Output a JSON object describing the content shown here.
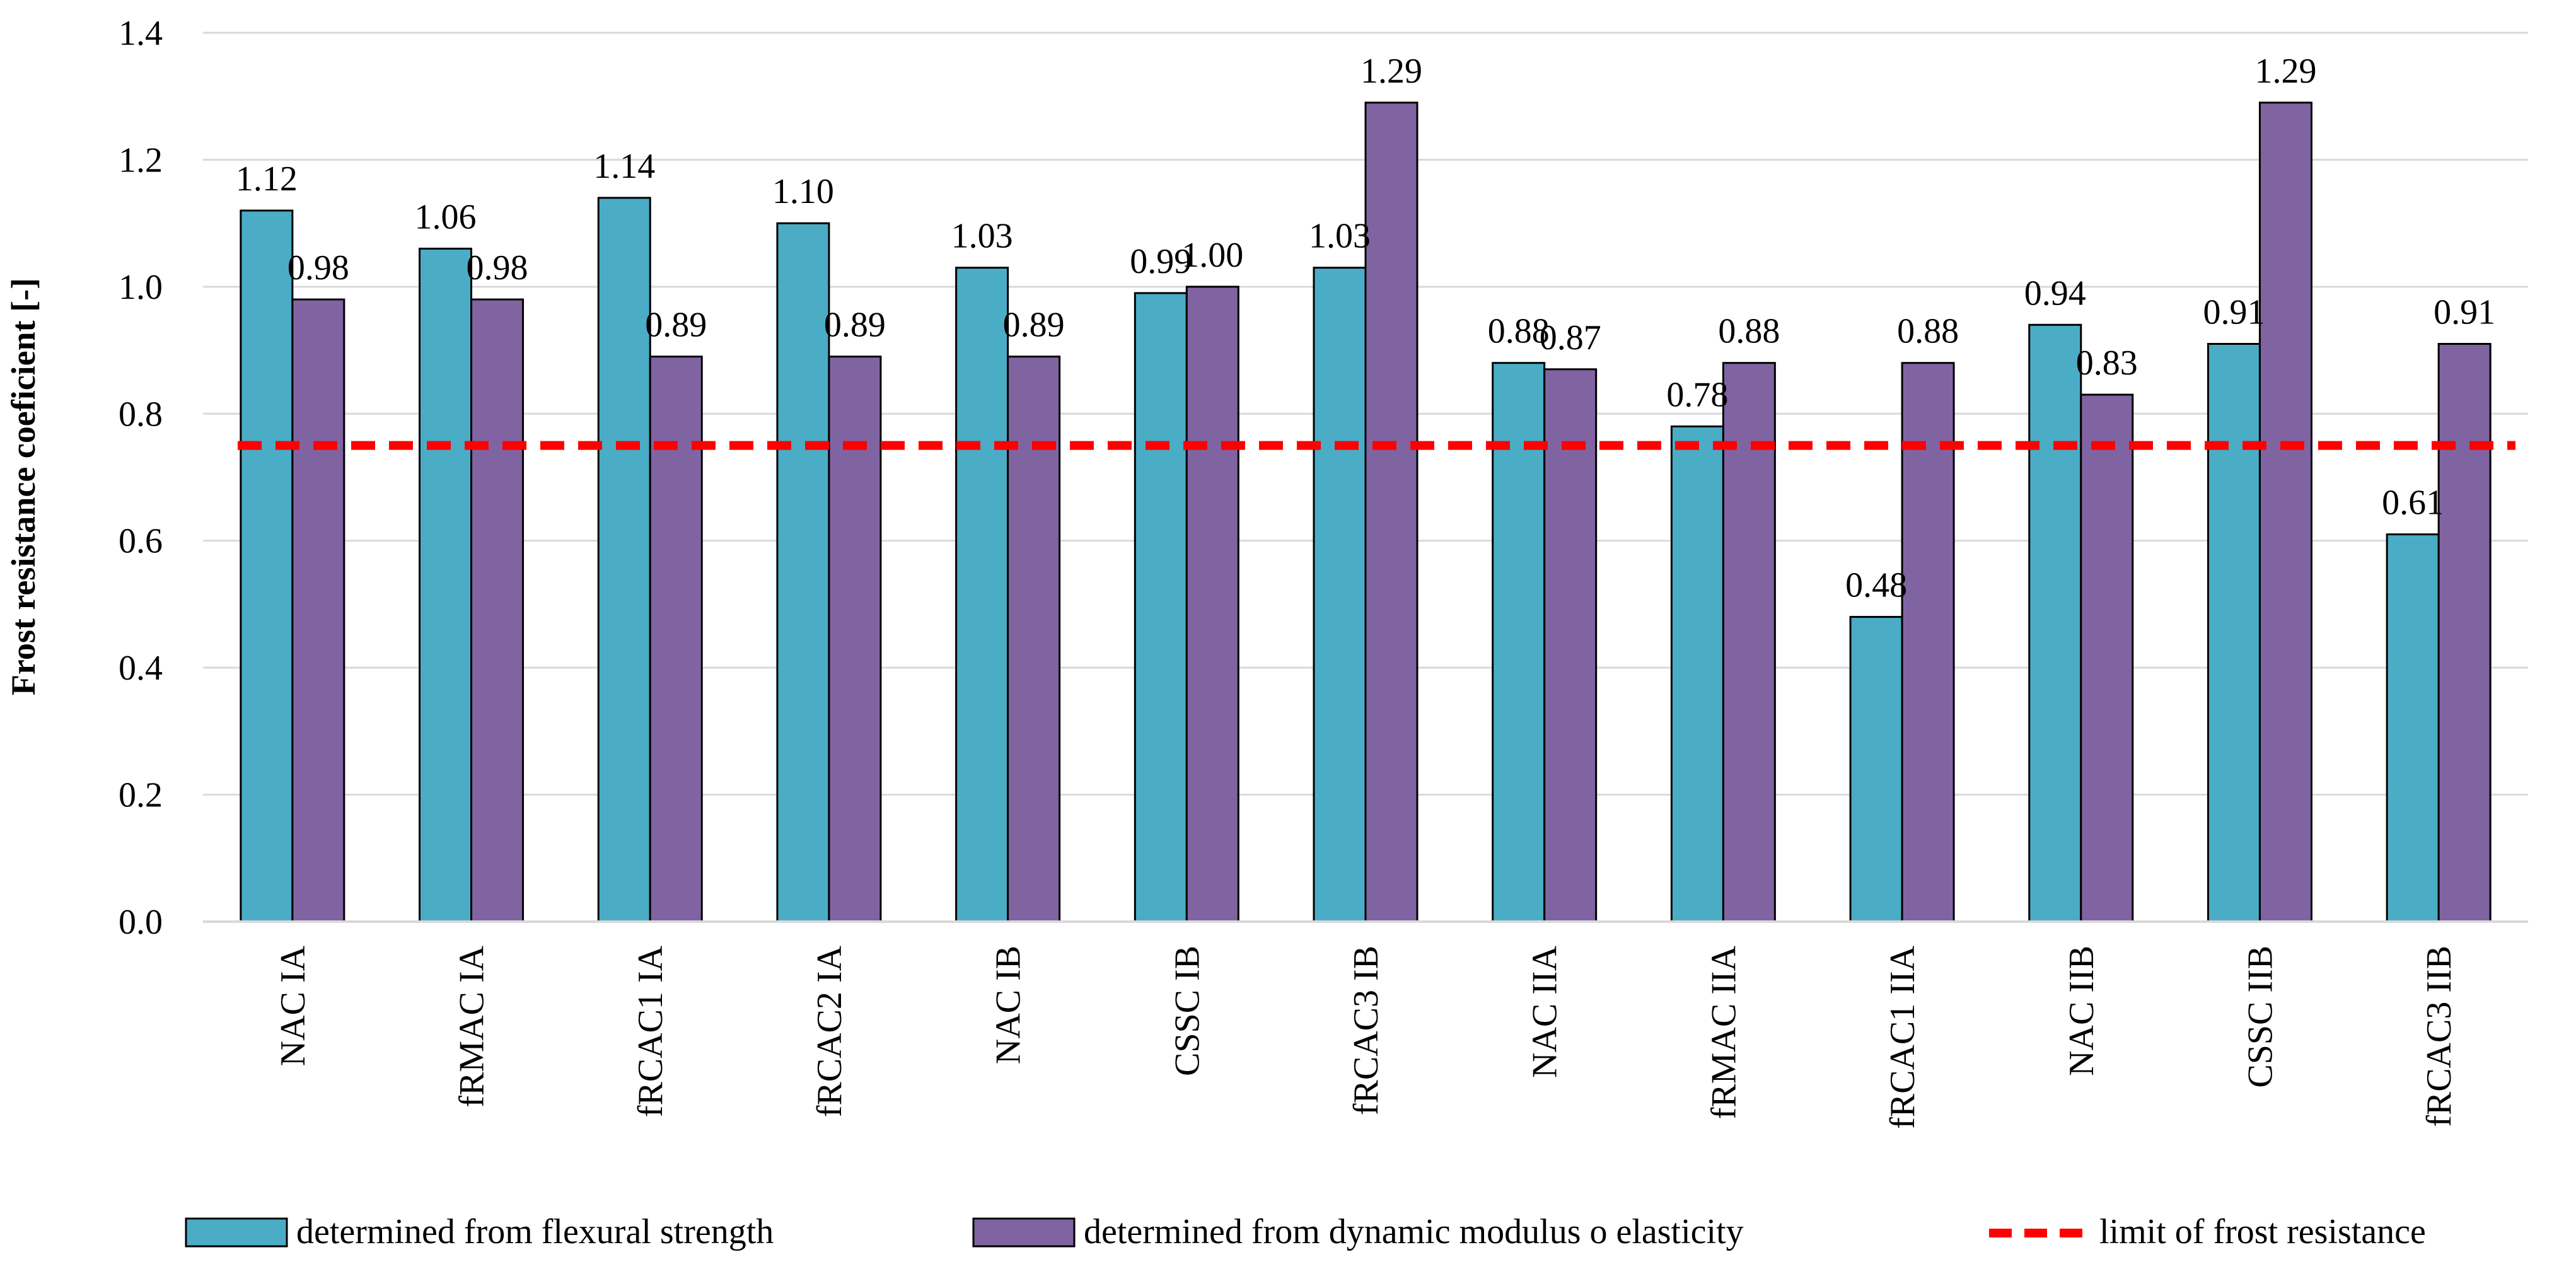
{
  "chart_data": {
    "type": "bar",
    "title": "",
    "xlabel": "",
    "ylabel": "Frost resistance coeficient [-]",
    "ylim": [
      0.0,
      1.4
    ],
    "yticks": [
      "0.0",
      "0.2",
      "0.4",
      "0.6",
      "0.8",
      "1.0",
      "1.2",
      "1.4"
    ],
    "grid": true,
    "categories": [
      "NAC IA",
      "fRMAC IA",
      "fRCAC1 IA",
      "fRCAC2 IA",
      "NAC IB",
      "CSSC IB",
      "fRCAC3 IB",
      "NAC IIA",
      "fRMAC IIA",
      "fRCAC1 IIA",
      "NAC IIB",
      "CSSC IIB",
      "fRCAC3 IIB"
    ],
    "series": [
      {
        "name": "determined from flexural strength",
        "color": "#4BACC6",
        "values": [
          1.12,
          1.06,
          1.14,
          1.1,
          1.03,
          0.99,
          1.03,
          0.88,
          0.78,
          0.48,
          0.94,
          0.91,
          0.61
        ],
        "labels": [
          "1.12",
          "1.06",
          "1.14",
          "1.10",
          "1.03",
          "0.99",
          "1.03",
          "0.88",
          "0.78",
          "0.48",
          "0.94",
          "0.91",
          "0.61"
        ]
      },
      {
        "name": "determined from dynamic modulus o elasticity",
        "color": "#8064A2",
        "values": [
          0.98,
          0.98,
          0.89,
          0.89,
          0.89,
          1.0,
          1.29,
          0.87,
          0.88,
          0.88,
          0.83,
          1.29,
          0.91
        ],
        "labels": [
          "0.98",
          "0.98",
          "0.89",
          "0.89",
          "0.89",
          "1.00",
          "1.29",
          "0.87",
          "0.88",
          "0.88",
          "0.83",
          "1.29",
          "0.91"
        ]
      }
    ],
    "reference_line": {
      "name": "limit of frost resistance",
      "value": 0.75,
      "color": "#FF0000",
      "style": "dashed"
    },
    "legend_position": "bottom"
  }
}
